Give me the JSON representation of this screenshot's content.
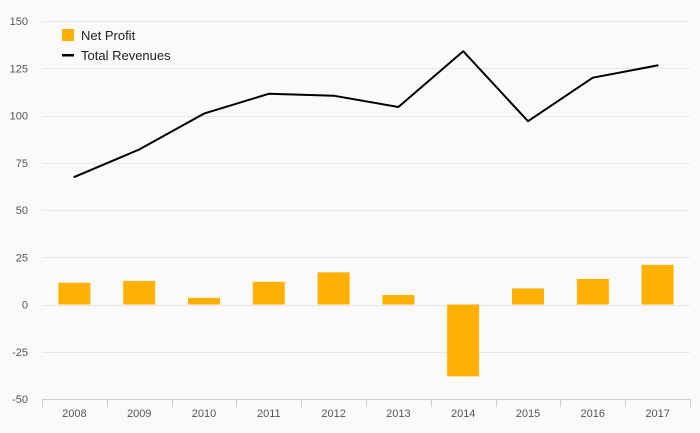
{
  "chart_data": {
    "type": "bar",
    "title": "",
    "xlabel": "",
    "ylabel": "",
    "categories": [
      "2008",
      "2009",
      "2010",
      "2011",
      "2012",
      "2013",
      "2014",
      "2015",
      "2016",
      "2017"
    ],
    "ylim": [
      -50,
      150
    ],
    "yticks": [
      -50,
      -25,
      0,
      25,
      50,
      75,
      100,
      125,
      150
    ],
    "ytick_labels": [
      "-50",
      "-25",
      "0",
      "25",
      "50",
      "75",
      "100",
      "125",
      "150"
    ],
    "grid": true,
    "legend_position": "top-left",
    "series": [
      {
        "name": "Net Profit",
        "type": "bar",
        "color": "#FFB000",
        "values": [
          11.5,
          12.5,
          3.5,
          12,
          17,
          5,
          -38,
          8.5,
          13.5,
          21
        ]
      },
      {
        "name": "Total Revenues",
        "type": "line",
        "color": "#000000",
        "values": [
          67.5,
          82,
          101,
          111.5,
          110.5,
          104.5,
          134,
          97,
          120,
          126.5
        ]
      }
    ]
  },
  "colors": {
    "background": "#fafafa",
    "grid": "#e6e6e6",
    "axis": "#cccccc",
    "bar": "#FFB000",
    "line": "#000000"
  }
}
